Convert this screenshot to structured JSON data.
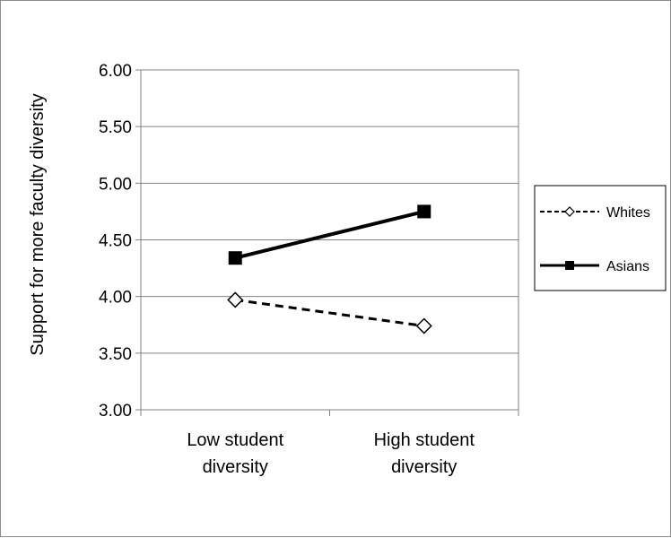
{
  "chart_data": {
    "type": "line",
    "ylabel": "Support for more faculty diversity",
    "xlabel": "",
    "title": "",
    "ylim": [
      3.0,
      6.0
    ],
    "yticks": [
      "3.00",
      "3.50",
      "4.00",
      "4.50",
      "5.00",
      "5.50",
      "6.00"
    ],
    "categories": [
      "Low student diversity",
      "High student diversity"
    ],
    "category_lines": [
      [
        "Low student",
        "diversity"
      ],
      [
        "High student",
        "diversity"
      ]
    ],
    "series": [
      {
        "name": "Whites",
        "values": [
          3.97,
          3.74
        ],
        "style": "dashed",
        "marker": "open-diamond",
        "color": "#000000"
      },
      {
        "name": "Asians",
        "values": [
          4.34,
          4.75
        ],
        "style": "solid",
        "marker": "filled-square",
        "color": "#000000"
      }
    ],
    "grid": true,
    "legend_position": "right"
  }
}
